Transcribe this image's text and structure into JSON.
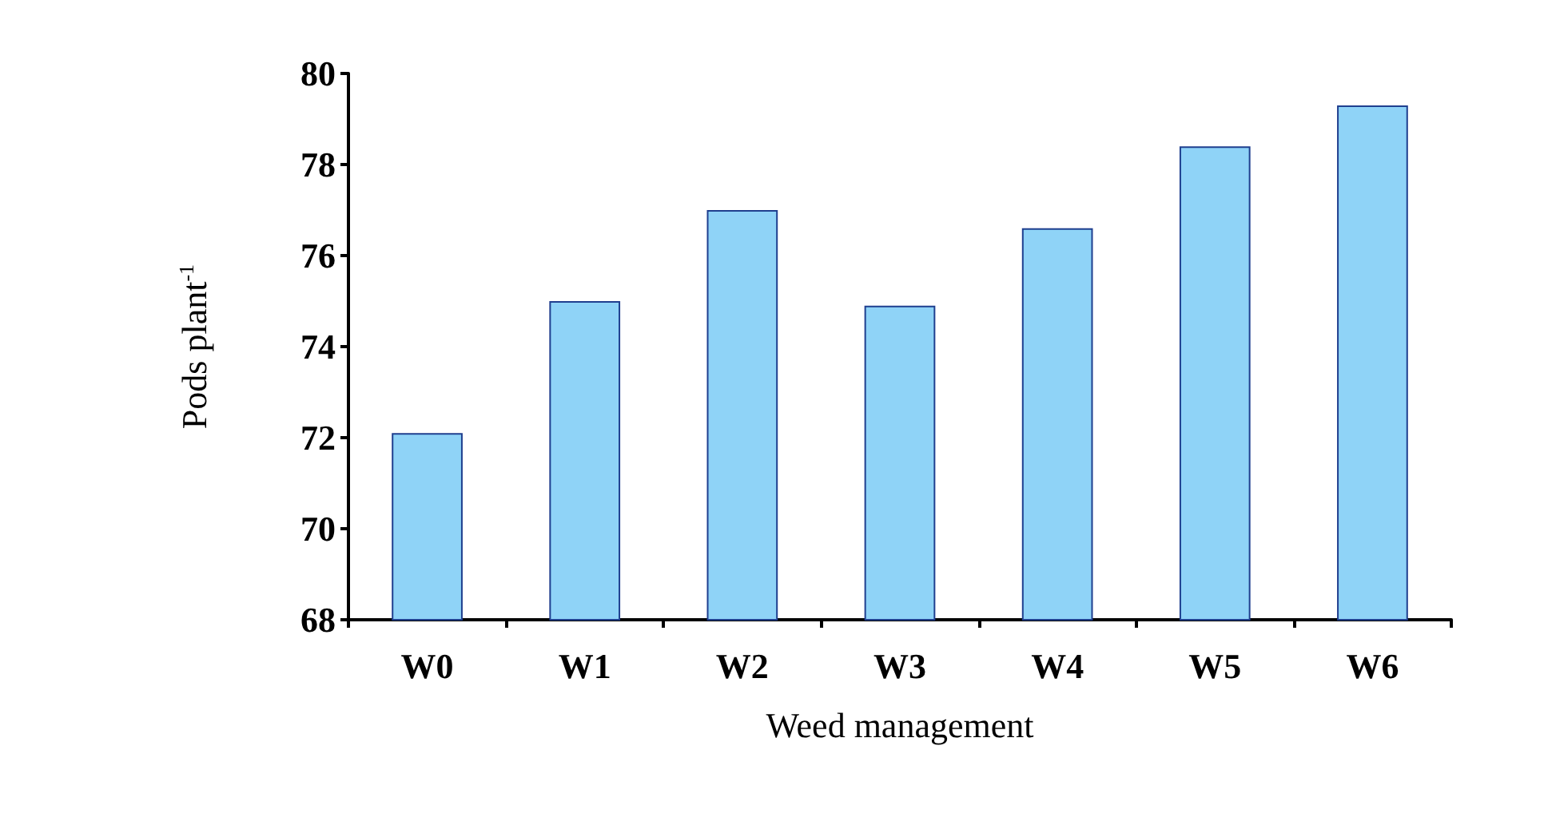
{
  "chart_data": {
    "type": "bar",
    "xlabel": "Weed management",
    "ylabel": "Pods plant$^{-1}$",
    "categories": [
      "W0",
      "W1",
      "W2",
      "W3",
      "W4",
      "W5",
      "W6"
    ],
    "values": [
      72.1,
      75.0,
      77.0,
      74.9,
      76.6,
      78.4,
      79.3
    ],
    "color": "#8fd3f7",
    "ylim": [
      68,
      80
    ],
    "yticks": [
      68,
      70,
      72,
      74,
      76,
      78,
      80
    ],
    "grid": false
  }
}
